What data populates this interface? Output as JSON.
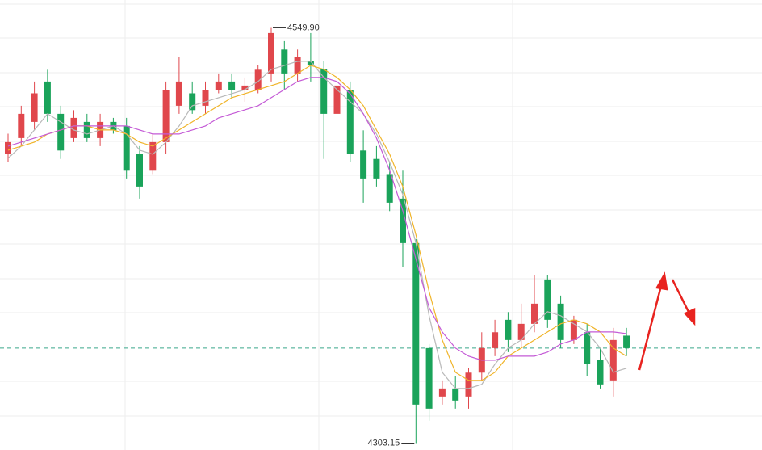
{
  "chart_data": {
    "type": "candlestick",
    "up_color": "#e0474c",
    "down_color": "#1aa35a",
    "ylim": [
      4300,
      4565
    ],
    "candles": {
      "open": [
        4474.8,
        4484.4,
        4494,
        4518,
        4498.8,
        4484.4,
        4494,
        4484.4,
        4494,
        4491.6,
        4474.8,
        4465,
        4482,
        4503.6,
        4511,
        4503.6,
        4513,
        4518,
        4513,
        4513,
        4522.8,
        4537,
        4522.8,
        4530,
        4525.6,
        4498.8,
        4513,
        4477,
        4472,
        4463,
        4448.4,
        4422,
        4359.6,
        4330.8,
        4335.6,
        4330.8,
        4345,
        4359.6,
        4376.4,
        4364.4,
        4374,
        4400.4,
        4386,
        4364.4,
        4369,
        4352.4,
        4340.4,
        4367
      ],
      "high": [
        4487,
        4503.6,
        4518,
        4525,
        4503.6,
        4501,
        4498.8,
        4498.8,
        4496.4,
        4496.4,
        4479.6,
        4487,
        4518,
        4532.4,
        4518,
        4518,
        4522.8,
        4522.8,
        4520.4,
        4527.6,
        4549.9,
        4542,
        4537,
        4546.8,
        4530,
        4520.4,
        4518,
        4489,
        4479.6,
        4470,
        4465,
        4424.4,
        4362,
        4340.4,
        4342.8,
        4347.6,
        4369,
        4376.4,
        4381,
        4386,
        4402.8,
        4402.8,
        4390.8,
        4378.8,
        4374,
        4359.6,
        4371.6,
        4371.6
      ],
      "low": [
        4470,
        4479.6,
        4489,
        4494,
        4472,
        4482,
        4482,
        4479.6,
        4487,
        4460.4,
        4448.4,
        4463,
        4474.8,
        4498.8,
        4498.8,
        4498.8,
        4511,
        4508.4,
        4506,
        4511,
        4518,
        4513,
        4518,
        4518,
        4472,
        4494,
        4470,
        4446,
        4455.6,
        4441,
        4407.6,
        4303.15,
        4316.4,
        4326,
        4323.6,
        4323.6,
        4340.4,
        4354.8,
        4357.2,
        4359.6,
        4369,
        4371.6,
        4359.6,
        4362,
        4342.8,
        4335.6,
        4330.8,
        4354.8
      ],
      "close": [
        4482,
        4498.8,
        4511,
        4498.8,
        4477,
        4496.4,
        4484.4,
        4494,
        4489,
        4465,
        4455.6,
        4482,
        4513,
        4518,
        4501,
        4513,
        4518,
        4513,
        4515.6,
        4525,
        4546.8,
        4522.8,
        4532.4,
        4527.6,
        4498.8,
        4515.6,
        4474.8,
        4460.4,
        4460.4,
        4446,
        4422,
        4326,
        4323.6,
        4335.6,
        4328.4,
        4345,
        4359.6,
        4369,
        4364.4,
        4374,
        4386,
        4376.4,
        4364.4,
        4376.4,
        4350,
        4338,
        4364.4,
        4359.6
      ]
    },
    "lines": [
      {
        "color": "#b8b8b8",
        "values": [
          4472.4,
          4479.6,
          4489.2,
          4498.8,
          4494,
          4489.2,
          4486.8,
          4489.2,
          4491.6,
          4486.8,
          4477.2,
          4474.8,
          4482,
          4491.6,
          4503.6,
          4506,
          4508.4,
          4510.8,
          4513.2,
          4518,
          4525.2,
          4527.6,
          4530,
          4530,
          4520.4,
          4513.2,
          4506,
          4498.8,
          4486.8,
          4470,
          4450.8,
          4422,
          4378.8,
          4345.2,
          4335.6,
          4335.6,
          4338,
          4350,
          4359.6,
          4364.4,
          4374,
          4381.2,
          4378.8,
          4374,
          4369.2,
          4359.6,
          4345.2,
          4347.6
        ]
      },
      {
        "color": "#f0b429",
        "values": [
          4477.2,
          4479.6,
          4482,
          4486.8,
          4489.2,
          4491.6,
          4491.6,
          4489.2,
          4489.2,
          4486.8,
          4482,
          4479.6,
          4484.4,
          4489.2,
          4494,
          4498.8,
          4503.6,
          4508.4,
          4510.8,
          4513.2,
          4515.6,
          4518,
          4522.8,
          4527.6,
          4525.2,
          4520.4,
          4513.2,
          4503.6,
          4489.2,
          4474.8,
          4455.6,
          4426.8,
          4393.2,
          4364.4,
          4345.2,
          4340.4,
          4340.4,
          4345.2,
          4354.8,
          4359.6,
          4364.4,
          4369.2,
          4374,
          4376.4,
          4374,
          4369.2,
          4359.6,
          4354.8
        ]
      },
      {
        "color": "#c45ad6",
        "values": [
          4479.6,
          4482,
          4484.4,
          4486.8,
          4489.2,
          4491.6,
          4491.6,
          4491.6,
          4491.6,
          4491.6,
          4489.2,
          4486.8,
          4486.8,
          4486.8,
          4489.2,
          4491.6,
          4496.4,
          4498.8,
          4501.2,
          4503.6,
          4508.4,
          4513.2,
          4518,
          4520.4,
          4520.4,
          4518,
          4510.8,
          4498.8,
          4484.4,
          4465.2,
          4441.2,
          4412.4,
          4383.6,
          4369.2,
          4359.6,
          4354.8,
          4352.4,
          4352.4,
          4354.8,
          4354.8,
          4354.8,
          4357.2,
          4362,
          4364.4,
          4369.2,
          4369.2,
          4369.2,
          4368.2
        ]
      }
    ],
    "last_price": 4359.6,
    "last_price_color": "#3aa88a",
    "high_label": "4549.90",
    "low_label": "4303.15"
  }
}
